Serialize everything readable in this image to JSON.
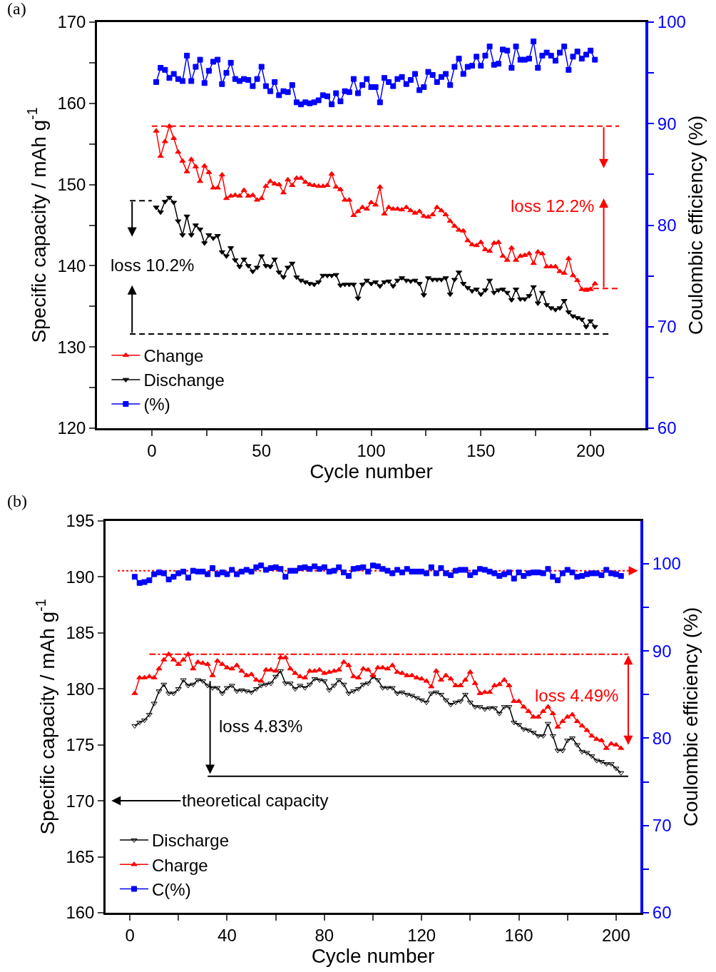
{
  "chart_data": [
    {
      "type": "line",
      "title": "(a)",
      "xlabel": "Cycle number",
      "ylabel": "Specific capacity / mAh g$^{-1}$",
      "y2label": "Coulombic efficiency (%)",
      "x": [
        2,
        4,
        6,
        8,
        10,
        12,
        14,
        16,
        18,
        20,
        22,
        24,
        26,
        28,
        30,
        32,
        34,
        36,
        38,
        40,
        42,
        44,
        46,
        48,
        50,
        52,
        54,
        56,
        58,
        60,
        62,
        64,
        66,
        68,
        70,
        72,
        74,
        76,
        78,
        80,
        82,
        84,
        86,
        88,
        90,
        92,
        94,
        96,
        98,
        100,
        102,
        104,
        106,
        108,
        110,
        112,
        114,
        116,
        118,
        120,
        122,
        124,
        126,
        128,
        130,
        132,
        134,
        136,
        138,
        140,
        142,
        144,
        146,
        148,
        150,
        152,
        154,
        156,
        158,
        160,
        162,
        164,
        166,
        168,
        170,
        172,
        174,
        176,
        178,
        180,
        182,
        184,
        186,
        188,
        190,
        192,
        194,
        196,
        198,
        200,
        202
      ],
      "series": [
        {
          "name": "Change",
          "color": "#ff0000",
          "marker": "triangle",
          "values": [
            156.6,
            153.5,
            155.3,
            157.2,
            155.7,
            154.0,
            152.9,
            151.6,
            153.1,
            152.2,
            150.4,
            152.3,
            151.5,
            149.6,
            149.6,
            151.2,
            148.3,
            148.6,
            148.7,
            148.6,
            149.3,
            148.6,
            148.7,
            148.1,
            148.3,
            149.8,
            150.4,
            150.1,
            150.0,
            149.0,
            150.6,
            149.9,
            150.8,
            150.8,
            150.3,
            150.0,
            149.9,
            149.8,
            149.8,
            149.9,
            151.3,
            149.7,
            149.4,
            148.1,
            148.1,
            146.2,
            146.7,
            147.2,
            147.0,
            147.8,
            147.5,
            149.7,
            146.4,
            147.2,
            147.0,
            147.0,
            146.9,
            147.2,
            146.8,
            146.5,
            146.7,
            146.1,
            146.0,
            146.3,
            147.2,
            146.8,
            146.3,
            145.5,
            144.9,
            144.4,
            144.3,
            143.1,
            142.6,
            142.5,
            142.9,
            142.0,
            141.8,
            142.8,
            142.9,
            141.2,
            140.7,
            142.2,
            140.7,
            141.2,
            141.3,
            141.5,
            140.3,
            141.7,
            141.5,
            139.9,
            139.9,
            139.9,
            139.3,
            139.1,
            140.9,
            138.8,
            138.2,
            137.1,
            137.0,
            137.1,
            137.8
          ]
        },
        {
          "name": "Dischange",
          "color": "#000000",
          "marker": "triangle-down",
          "values": [
            147.2,
            146.6,
            147.9,
            148.4,
            147.8,
            145.5,
            143.8,
            146.1,
            143.8,
            145.0,
            144.5,
            142.8,
            143.8,
            143.4,
            143.7,
            141.7,
            141.2,
            142.2,
            140.7,
            139.9,
            140.8,
            140.0,
            139.3,
            139.8,
            141.2,
            140.0,
            139.9,
            140.8,
            139.2,
            138.6,
            139.8,
            140.3,
            138.6,
            138.2,
            138.0,
            137.8,
            137.7,
            138.0,
            138.8,
            138.8,
            138.8,
            138.9,
            137.6,
            137.7,
            137.7,
            137.7,
            136.0,
            137.7,
            138.2,
            137.8,
            138.0,
            137.5,
            138.0,
            138.1,
            137.5,
            138.2,
            138.5,
            138.2,
            138.1,
            138.2,
            137.8,
            136.4,
            138.5,
            138.3,
            138.3,
            138.3,
            138.5,
            136.5,
            138.3,
            139.2,
            137.8,
            137.3,
            136.9,
            137.1,
            136.5,
            137.0,
            138.2,
            136.7,
            137.0,
            137.1,
            136.7,
            135.8,
            137.1,
            135.9,
            135.9,
            136.3,
            137.4,
            135.4,
            136.7,
            135.2,
            134.8,
            134.6,
            134.8,
            135.7,
            134.3,
            133.8,
            133.6,
            133.4,
            132.5,
            133.2,
            132.5
          ]
        },
        {
          "name": "(%)",
          "color": "#0000ff",
          "marker": "square",
          "axis": "y2",
          "values": [
            94.1,
            95.5,
            95.3,
            94.5,
            94.9,
            94.4,
            94.2,
            96.7,
            94.2,
            95.6,
            96.3,
            94.0,
            95.2,
            96.1,
            96.3,
            93.9,
            95.0,
            96.0,
            94.4,
            94.2,
            94.4,
            94.3,
            93.7,
            94.4,
            95.6,
            93.7,
            93.2,
            94.1,
            92.8,
            93.2,
            93.1,
            93.8,
            92.1,
            91.9,
            92.1,
            92.0,
            92.1,
            92.3,
            92.8,
            92.7,
            91.9,
            93.0,
            92.2,
            93.2,
            93.1,
            94.4,
            93.0,
            93.8,
            94.4,
            93.6,
            93.6,
            92.1,
            94.5,
            94.1,
            93.7,
            94.4,
            94.6,
            93.9,
            94.3,
            94.9,
            93.3,
            93.6,
            95.1,
            94.8,
            94.1,
            94.6,
            94.9,
            93.8,
            95.6,
            96.4,
            94.9,
            95.6,
            95.7,
            96.6,
            95.7,
            96.7,
            97.6,
            95.8,
            95.9,
            97.3,
            97.2,
            95.5,
            97.6,
            96.3,
            96.3,
            96.4,
            98.1,
            95.5,
            96.7,
            97.0,
            96.7,
            96.2,
            97.0,
            97.6,
            95.3,
            96.6,
            97.1,
            96.4,
            96.8,
            97.2,
            96.3
          ]
        },
        {
          "color": "#ff0000",
          "marker": "none",
          "line_style": "dashed",
          "x": [
            0,
            213
          ],
          "values": [
            157.2,
            157.2
          ]
        },
        {
          "color": "#ff0000",
          "marker": "none",
          "line_style": "dashed",
          "x": [
            197,
            213
          ],
          "values": [
            137.2,
            137.2
          ]
        },
        {
          "color": "#000000",
          "marker": "none",
          "line_style": "dashed",
          "x": [
            -10,
            0
          ],
          "values": [
            148,
            148
          ]
        },
        {
          "color": "#000000",
          "marker": "none",
          "line_style": "dashed",
          "x": [
            -10,
            209
          ],
          "values": [
            131.6,
            131.6
          ]
        }
      ],
      "annotations": [
        {
          "text": "loss 10.2%",
          "x": -9,
          "y": 148
        },
        {
          "text": "loss 12.2%",
          "x": 206,
          "y": 137.2
        }
      ],
      "xlim": [
        -25,
        225
      ],
      "xticks": [
        0,
        {
          "value": 25,
          "label": null
        },
        50,
        {
          "value": 75,
          "label": null
        },
        100,
        {
          "value": 125,
          "label": null
        },
        150,
        {
          "value": 175,
          "label": null
        },
        200
      ],
      "ylim": [
        120,
        170
      ],
      "yticks": [
        120,
        {
          "value": 125,
          "label": null
        },
        130,
        {
          "value": 135,
          "label": null
        },
        140,
        {
          "value": 145,
          "label": null
        },
        150,
        {
          "value": 155,
          "label": null
        },
        160,
        {
          "value": 165,
          "label": null
        },
        170
      ],
      "y2lim": [
        60,
        100
      ],
      "y2ticks": [
        60,
        {
          "value": 65,
          "label": null
        },
        70,
        {
          "value": 75,
          "label": null
        },
        80,
        {
          "value": 85,
          "label": null
        },
        90,
        {
          "value": 95,
          "label": null
        },
        100
      ],
      "legend": "bottom left"
    },
    {
      "type": "line",
      "title": "(b)",
      "xlabel": "Cycle number",
      "ylabel": "Specific capacity / mAh g$^{-1}$",
      "y2label": "Coulombic efficiency (%)",
      "x": [
        2,
        4,
        6,
        8,
        10,
        12,
        14,
        16,
        18,
        20,
        22,
        24,
        26,
        28,
        30,
        32,
        34,
        36,
        38,
        40,
        42,
        44,
        46,
        48,
        50,
        52,
        54,
        56,
        58,
        60,
        62,
        64,
        66,
        68,
        70,
        72,
        74,
        76,
        78,
        80,
        82,
        84,
        86,
        88,
        90,
        92,
        94,
        96,
        98,
        100,
        102,
        104,
        106,
        108,
        110,
        112,
        114,
        116,
        118,
        120,
        122,
        124,
        126,
        128,
        130,
        132,
        134,
        136,
        138,
        140,
        142,
        144,
        146,
        148,
        150,
        152,
        154,
        156,
        158,
        160,
        162,
        164,
        166,
        168,
        170,
        172,
        174,
        176,
        178,
        180,
        182,
        184,
        186,
        188,
        190,
        192,
        194,
        196,
        198,
        200,
        202
      ],
      "series": [
        {
          "name": "Discharge",
          "color": "#000000",
          "marker": "triangle-down-open",
          "values": [
            176.7,
            177.0,
            177.2,
            177.7,
            178.7,
            179.8,
            180.4,
            179.6,
            179.6,
            180.0,
            180.8,
            180.3,
            180.4,
            180.8,
            180.7,
            180.3,
            180.1,
            180.1,
            179.6,
            180.1,
            180.3,
            179.8,
            179.9,
            179.8,
            179.7,
            180.0,
            180.3,
            180.4,
            180.5,
            181.1,
            181.6,
            180.5,
            180.5,
            180.0,
            180.3,
            180.1,
            180.4,
            180.9,
            180.8,
            180.7,
            179.9,
            180.3,
            180.8,
            180.4,
            179.6,
            179.8,
            180.0,
            180.4,
            180.5,
            181.1,
            180.8,
            180.1,
            180.1,
            180.1,
            179.6,
            179.7,
            179.5,
            179.4,
            179.2,
            179.0,
            178.8,
            179.6,
            179.7,
            179.5,
            179.0,
            178.6,
            178.8,
            178.9,
            179.5,
            178.8,
            178.4,
            178.4,
            178.2,
            178.3,
            178.3,
            177.8,
            178.4,
            178.4,
            177.0,
            176.8,
            176.4,
            176.3,
            176.1,
            175.8,
            175.8,
            176.9,
            175.8,
            174.5,
            174.5,
            175.4,
            175.6,
            175.0,
            174.4,
            174.3,
            174.0,
            173.6,
            173.5,
            173.3,
            173.3,
            172.9,
            172.5
          ]
        },
        {
          "name": "Charge",
          "color": "#ff0000",
          "marker": "triangle",
          "values": [
            179.6,
            181.0,
            181.0,
            181.1,
            181.0,
            181.8,
            182.6,
            183.1,
            182.6,
            182.2,
            182.6,
            183.1,
            181.8,
            182.4,
            182.3,
            182.2,
            181.2,
            182.5,
            182.2,
            181.9,
            181.8,
            182.1,
            181.6,
            181.2,
            181.3,
            180.8,
            180.7,
            181.7,
            181.7,
            181.6,
            182.8,
            182.8,
            181.8,
            181.4,
            181.1,
            181.0,
            181.6,
            181.6,
            181.7,
            181.4,
            181.5,
            181.6,
            181.7,
            182.4,
            182.1,
            181.1,
            181.0,
            181.8,
            181.7,
            181.2,
            181.9,
            181.9,
            181.8,
            182.1,
            181.5,
            181.4,
            181.2,
            181.2,
            181.0,
            180.9,
            180.7,
            180.2,
            181.6,
            180.8,
            181.2,
            180.9,
            180.3,
            180.3,
            180.8,
            181.5,
            180.5,
            179.6,
            179.7,
            179.7,
            180.3,
            180.4,
            180.8,
            180.3,
            178.9,
            178.9,
            178.4,
            178.0,
            177.5,
            177.5,
            178.0,
            178.4,
            177.8,
            176.6,
            177.1,
            177.5,
            177.7,
            177.1,
            176.7,
            176.3,
            175.8,
            175.5,
            175.4,
            174.7,
            175.1,
            175.0,
            174.7
          ]
        },
        {
          "name": "C(%)",
          "color": "#0000ff",
          "marker": "square",
          "axis": "y2",
          "values": [
            98.5,
            97.8,
            97.9,
            98.1,
            98.8,
            99.0,
            98.9,
            98.2,
            98.5,
            98.9,
            99.1,
            98.4,
            99.2,
            99.1,
            99.1,
            98.8,
            99.5,
            98.8,
            99.0,
            98.8,
            99.3,
            98.8,
            99.1,
            99.3,
            99.1,
            99.6,
            99.8,
            99.3,
            99.5,
            99.6,
            99.4,
            98.5,
            99.2,
            99.2,
            99.5,
            99.6,
            99.4,
            99.7,
            99.4,
            99.6,
            99.1,
            99.2,
            99.6,
            99.0,
            98.6,
            99.4,
            99.5,
            99.6,
            99.1,
            99.8,
            99.7,
            99.4,
            99.2,
            98.9,
            99.3,
            99.0,
            99.4,
            99.1,
            99.1,
            99.1,
            98.9,
            99.6,
            98.9,
            99.5,
            98.9,
            98.7,
            99.2,
            99.3,
            99.3,
            98.7,
            99.0,
            99.4,
            99.3,
            99.1,
            98.9,
            98.6,
            98.8,
            99.0,
            98.3,
            99.0,
            98.6,
            98.9,
            99.0,
            99.0,
            98.9,
            99.4,
            98.5,
            98.1,
            98.9,
            99.3,
            99.0,
            98.5,
            98.6,
            98.8,
            98.9,
            98.9,
            98.7,
            99.3,
            98.9,
            98.8,
            98.6
          ]
        },
        {
          "color": "#ff0000",
          "marker": "none",
          "line_style": "dashdot",
          "x": [
            8,
            205
          ],
          "values": [
            183.1,
            183.1
          ]
        },
        {
          "color": "#000000",
          "marker": "none",
          "line_style": "solid",
          "x": [
            32,
            205
          ],
          "values": [
            172.2,
            172.2
          ]
        },
        {
          "color": "#ff0000",
          "line_style": "dotted",
          "axis": "y2",
          "x": [
            -5,
            207
          ],
          "values": [
            99.2,
            99.2
          ]
        }
      ],
      "annotations": [
        {
          "text": "loss 4.83%",
          "x": 33,
          "y": 180.8
        },
        {
          "text": "loss 4.49%",
          "x": 205,
          "y": 183.1
        },
        "theoretical capacity"
      ],
      "xlim": [
        -10,
        210
      ],
      "xticks": [
        0,
        {
          "value": 20,
          "label": null
        },
        40,
        {
          "value": 60,
          "label": null
        },
        80,
        {
          "value": 100,
          "label": null
        },
        120,
        {
          "value": 140,
          "label": null
        },
        160,
        {
          "value": 180,
          "label": null
        },
        200
      ],
      "ylim": [
        160,
        195
      ],
      "yticks": [
        160,
        165,
        170,
        175,
        180,
        185,
        190,
        195
      ],
      "y2lim": [
        60,
        104.9
      ],
      "y2ticks": [
        60,
        {
          "value": 65,
          "label": null
        },
        70,
        {
          "value": 75,
          "label": null
        },
        80,
        {
          "value": 85,
          "label": null
        },
        90,
        {
          "value": 95,
          "label": null
        },
        100
      ],
      "legend": "bottom left"
    }
  ]
}
